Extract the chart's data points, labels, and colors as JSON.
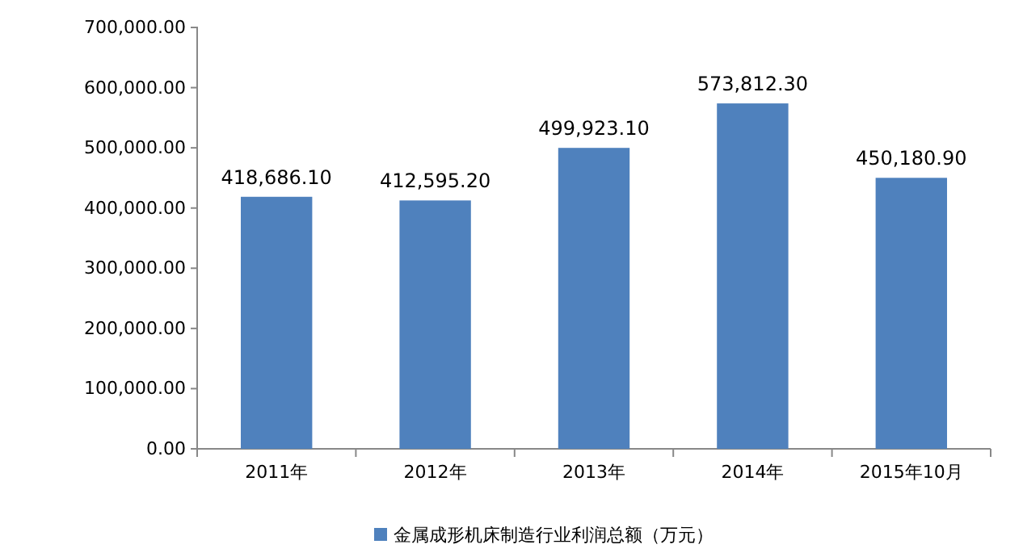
{
  "chart_data": {
    "type": "bar",
    "categories": [
      "2011年",
      "2012年",
      "2013年",
      "2014年",
      "2015年10月"
    ],
    "series": [
      {
        "name": "金属成形机床制造行业利润总额（万元）",
        "color": "#4f81bd",
        "values": [
          418686.1,
          412595.2,
          499923.1,
          573812.3,
          450180.9
        ]
      }
    ],
    "value_labels": [
      "418,686.10",
      "412,595.20",
      "499,923.10",
      "573,812.30",
      "450,180.90"
    ],
    "ylim": [
      0,
      700000
    ],
    "yticks": [
      {
        "value": 0,
        "label": "0.00"
      },
      {
        "value": 100000,
        "label": "100,000.00"
      },
      {
        "value": 200000,
        "label": "200,000.00"
      },
      {
        "value": 300000,
        "label": "300,000.00"
      },
      {
        "value": 400000,
        "label": "400,000.00"
      },
      {
        "value": 500000,
        "label": "500,000.00"
      },
      {
        "value": 600000,
        "label": "600,000.00"
      },
      {
        "value": 700000,
        "label": "700,000.00"
      }
    ],
    "legend": "bottom"
  }
}
